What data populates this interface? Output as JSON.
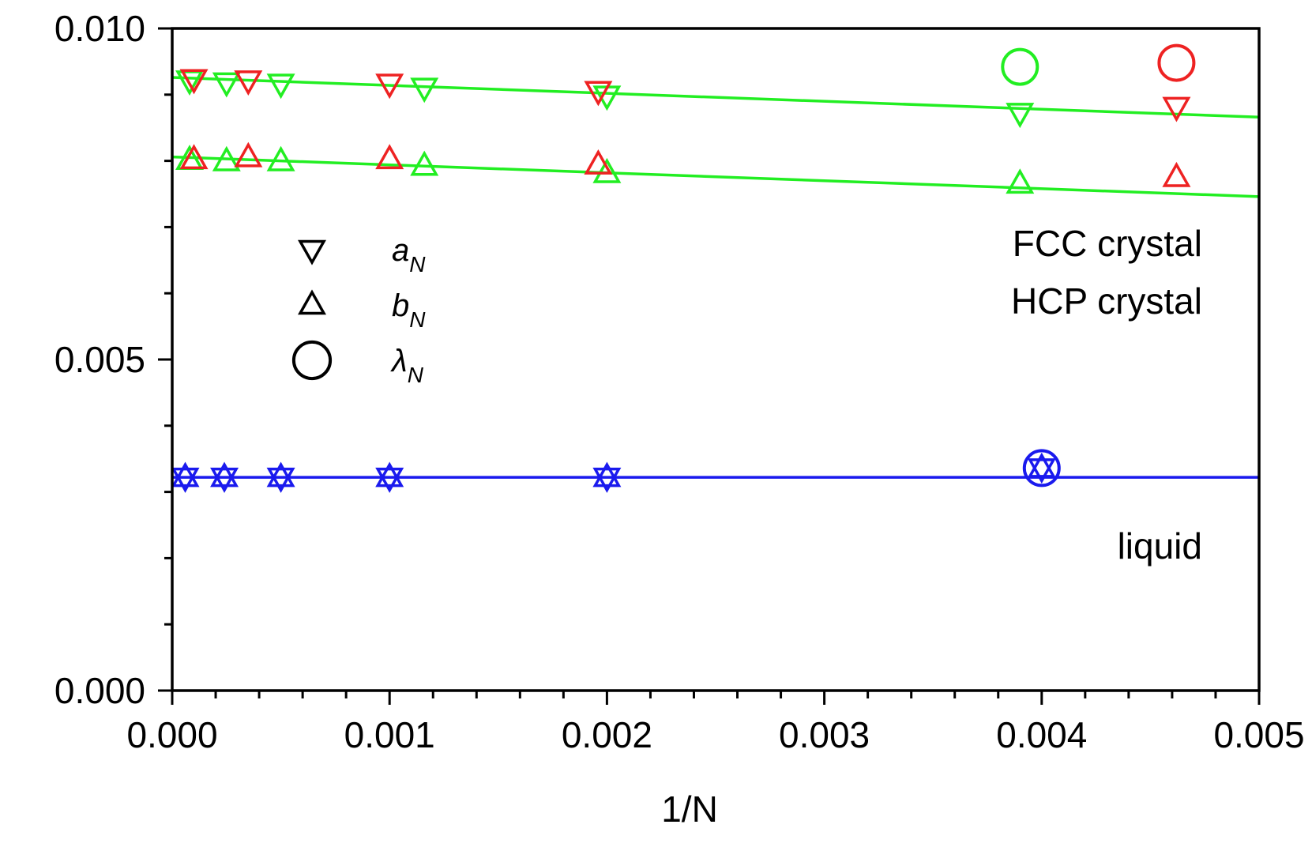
{
  "chart_data": {
    "type": "scatter",
    "title": "",
    "xlabel": "1/N",
    "ylabel": "",
    "xlim": [
      0,
      0.005
    ],
    "ylim": [
      0,
      0.01
    ],
    "x_ticks": [
      "0.000",
      "0.001",
      "0.002",
      "0.003",
      "0.004",
      "0.005"
    ],
    "y_ticks": [
      "0.000",
      "0.005",
      "0.010"
    ],
    "grid": false,
    "colors": {
      "fcc": "#22ee22",
      "hcp": "#ee2222",
      "liquid": "#1a1aee",
      "axis": "#000000"
    },
    "series": [
      {
        "name": "FCC a_N",
        "phase": "fcc",
        "marker": "triangle-down",
        "x": [
          8e-05,
          0.00025,
          0.0005,
          0.00116,
          0.002,
          0.0039
        ],
        "y": [
          0.00922,
          0.00919,
          0.00917,
          0.00911,
          0.00899,
          0.00873
        ]
      },
      {
        "name": "HCP a_N",
        "phase": "hcp",
        "marker": "triangle-down",
        "x": [
          0.0001,
          0.00035,
          0.001,
          0.00196,
          0.00462
        ],
        "y": [
          0.00924,
          0.00922,
          0.00917,
          0.00906,
          0.00882
        ]
      },
      {
        "name": "FCC b_N",
        "phase": "fcc",
        "marker": "triangle-up",
        "x": [
          8e-05,
          0.00025,
          0.0005,
          0.00116,
          0.002,
          0.0039
        ],
        "y": [
          0.00801,
          0.00799,
          0.00799,
          0.00792,
          0.00781,
          0.00765
        ]
      },
      {
        "name": "HCP b_N",
        "phase": "hcp",
        "marker": "triangle-up",
        "x": [
          0.0001,
          0.00035,
          0.001,
          0.00196,
          0.00462
        ],
        "y": [
          0.00802,
          0.00805,
          0.00802,
          0.00794,
          0.00775
        ]
      },
      {
        "name": "FCC lambda_N",
        "phase": "fcc",
        "marker": "circle",
        "x": [
          0.0039
        ],
        "y": [
          0.00942
        ]
      },
      {
        "name": "HCP lambda_N",
        "phase": "hcp",
        "marker": "circle",
        "x": [
          0.00462
        ],
        "y": [
          0.00948
        ]
      },
      {
        "name": "liquid a_N",
        "phase": "liquid",
        "marker": "triangle-down",
        "x": [
          6e-05,
          0.00024,
          0.0005,
          0.001,
          0.002,
          0.004
        ],
        "y": [
          0.00322,
          0.00322,
          0.00322,
          0.00322,
          0.00322,
          0.00336
        ]
      },
      {
        "name": "liquid b_N",
        "phase": "liquid",
        "marker": "triangle-up",
        "x": [
          6e-05,
          0.00024,
          0.0005,
          0.001,
          0.002,
          0.004
        ],
        "y": [
          0.00322,
          0.00322,
          0.00322,
          0.00322,
          0.00322,
          0.00336
        ]
      },
      {
        "name": "liquid lambda_N",
        "phase": "liquid",
        "marker": "circle",
        "x": [
          0.004
        ],
        "y": [
          0.00336
        ]
      }
    ],
    "fit_lines": [
      {
        "name": "FCC a_N fit",
        "phase": "fcc",
        "x": [
          0,
          0.005
        ],
        "y": [
          0.00926,
          0.00866
        ]
      },
      {
        "name": "FCC b_N fit",
        "phase": "fcc",
        "x": [
          0,
          0.005
        ],
        "y": [
          0.00806,
          0.00746
        ]
      },
      {
        "name": "liquid fit",
        "phase": "liquid",
        "x": [
          0,
          0.005
        ],
        "y": [
          0.00322,
          0.00322
        ]
      }
    ],
    "legend": {
      "placement": "upper-left",
      "entries": [
        {
          "marker": "triangle-down",
          "symbol": "a",
          "subscript": "N"
        },
        {
          "marker": "triangle-up",
          "symbol": "b",
          "subscript": "N"
        },
        {
          "marker": "circle",
          "symbol": "λ",
          "subscript": "N"
        }
      ]
    },
    "annotations": [
      {
        "text": "FCC crystal",
        "phase": "fcc"
      },
      {
        "text": "HCP crystal",
        "phase": "hcp"
      },
      {
        "text": "liquid",
        "phase": "liquid"
      }
    ]
  }
}
